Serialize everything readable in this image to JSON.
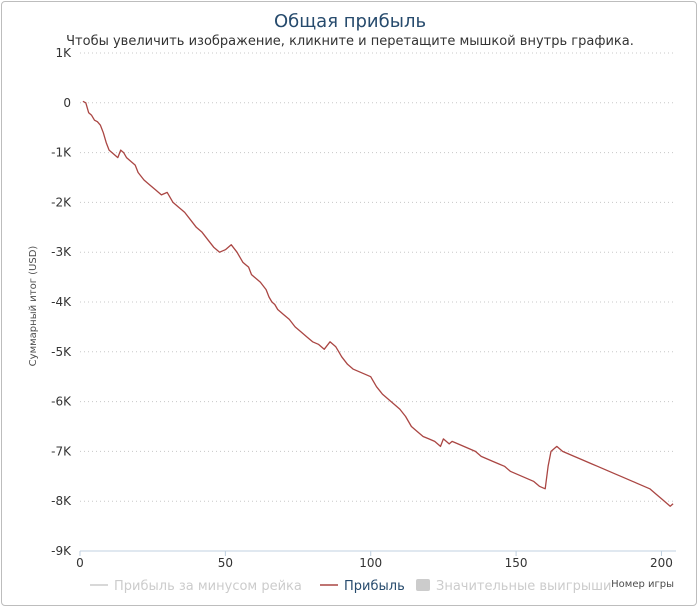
{
  "chart_data": {
    "type": "line",
    "title": "Общая прибыль",
    "subtitle": "Чтобы увеличить изображение, кликните и перетащите мышкой внутрь графика.",
    "ylabel": "Суммарный итог (USD)",
    "xlabel": "Номер игры",
    "xlim": [
      0,
      205
    ],
    "ylim": [
      -9000,
      1000
    ],
    "x_ticks": [
      0,
      50,
      100,
      150,
      200
    ],
    "y_ticks": [
      1000,
      0,
      -1000,
      -2000,
      -3000,
      -4000,
      -5000,
      -6000,
      -7000,
      -8000,
      -9000
    ],
    "y_tick_labels": [
      "1K",
      "0",
      "-1K",
      "-2K",
      "-3K",
      "-4K",
      "-5K",
      "-6K",
      "-7K",
      "-8K",
      "-9K"
    ],
    "x_tick_labels": [
      "0",
      "50",
      "100",
      "150",
      "200"
    ],
    "grid": "horizontal dotted",
    "legend_position": "bottom",
    "series": [
      {
        "name": "Прибыль за минусом рейка",
        "visible": false,
        "color": "#cccccc",
        "values": []
      },
      {
        "name": "Прибыль",
        "visible": true,
        "color": "#aa4643",
        "x": [
          1,
          2,
          3,
          4,
          5,
          6,
          7,
          8,
          9,
          10,
          11,
          12,
          13,
          14,
          15,
          16,
          17,
          18,
          19,
          20,
          22,
          24,
          26,
          28,
          30,
          32,
          33,
          34,
          35,
          36,
          38,
          40,
          42,
          44,
          46,
          48,
          50,
          52,
          54,
          55,
          56,
          57,
          58,
          59,
          60,
          62,
          64,
          65,
          66,
          67,
          68,
          70,
          72,
          74,
          76,
          78,
          80,
          82,
          84,
          86,
          87,
          88,
          89,
          90,
          92,
          94,
          96,
          98,
          100,
          102,
          104,
          106,
          108,
          110,
          112,
          114,
          116,
          118,
          120,
          122,
          124,
          125,
          126,
          127,
          128,
          130,
          132,
          134,
          136,
          138,
          140,
          142,
          144,
          146,
          148,
          150,
          152,
          154,
          156,
          158,
          160,
          161,
          162,
          163,
          164,
          165,
          166,
          168,
          170,
          172,
          174,
          176,
          178,
          180,
          182,
          184,
          186,
          188,
          190,
          192,
          194,
          196,
          198,
          200,
          202,
          203,
          204
        ],
        "values": [
          30,
          0,
          -200,
          -250,
          -350,
          -380,
          -450,
          -600,
          -800,
          -950,
          -1000,
          -1050,
          -1100,
          -950,
          -1000,
          -1100,
          -1150,
          -1200,
          -1250,
          -1400,
          -1550,
          -1650,
          -1750,
          -1850,
          -1800,
          -2000,
          -2050,
          -2100,
          -2150,
          -2200,
          -2350,
          -2500,
          -2600,
          -2750,
          -2900,
          -3000,
          -2950,
          -2850,
          -3000,
          -3100,
          -3200,
          -3250,
          -3300,
          -3450,
          -3500,
          -3600,
          -3750,
          -3900,
          -4000,
          -4050,
          -4150,
          -4250,
          -4350,
          -4500,
          -4600,
          -4700,
          -4800,
          -4850,
          -4950,
          -4800,
          -4850,
          -4900,
          -5000,
          -5100,
          -5250,
          -5350,
          -5400,
          -5450,
          -5500,
          -5700,
          -5850,
          -5950,
          -6050,
          -6150,
          -6300,
          -6500,
          -6600,
          -6700,
          -6750,
          -6800,
          -6900,
          -6750,
          -6800,
          -6850,
          -6800,
          -6850,
          -6900,
          -6950,
          -7000,
          -7100,
          -7150,
          -7200,
          -7250,
          -7300,
          -7400,
          -7450,
          -7500,
          -7550,
          -7600,
          -7700,
          -7750,
          -7300,
          -7000,
          -6950,
          -6900,
          -6950,
          -7000,
          -7050,
          -7100,
          -7150,
          -7200,
          -7250,
          -7300,
          -7350,
          -7400,
          -7450,
          -7500,
          -7550,
          -7600,
          -7650,
          -7700,
          -7750,
          -7850,
          -7950,
          -8050,
          -8100,
          -8050
        ]
      },
      {
        "name": "Значительные выигрыши",
        "visible": false,
        "color": "#cccccc",
        "values": []
      }
    ]
  }
}
